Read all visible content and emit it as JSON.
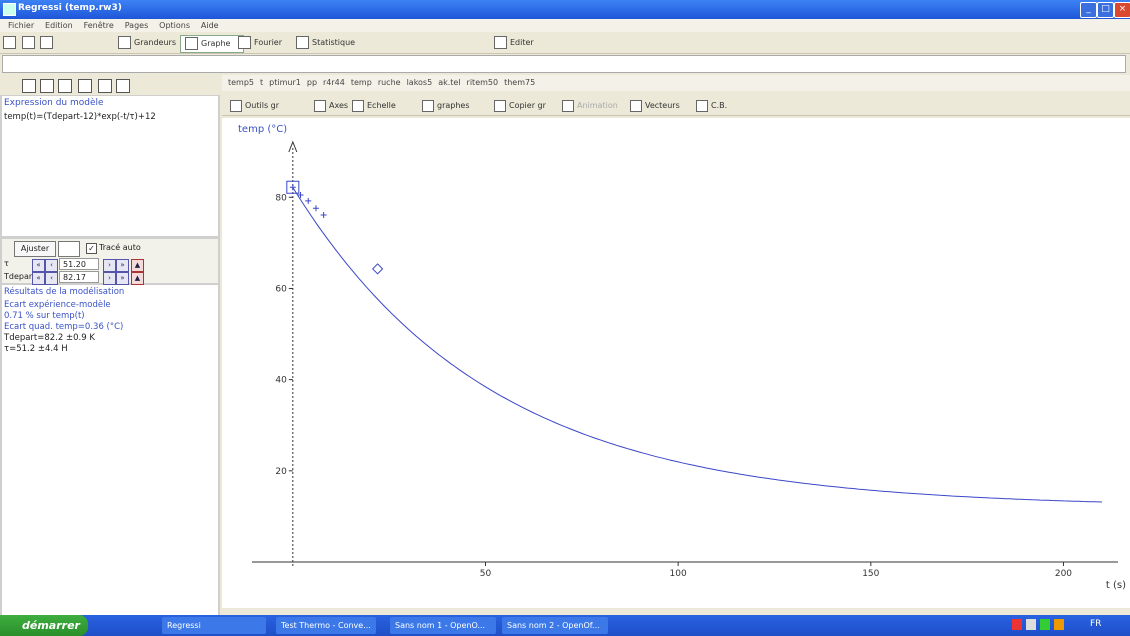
{
  "window": {
    "title": "Regressi (temp.rw3)"
  },
  "menu": [
    "Fichier",
    "Edition",
    "Fenêtre",
    "Pages",
    "Options",
    "Aide"
  ],
  "toolbar": {
    "grandeurs": "Grandeurs",
    "graphe": "Graphe",
    "fourier": "Fourier",
    "statistique": "Statistique",
    "editer": "Editer"
  },
  "left": {
    "model_header": "Expression du modèle",
    "model_expr": "temp(t)=(Tdepart-12)*exp(-t/τ)+12",
    "ajuster": "Ajuster",
    "trace_auto": "Tracé auto",
    "params": [
      {
        "name": "τ",
        "value": "51.20"
      },
      {
        "name": "Tdepart",
        "value": "82.17"
      }
    ],
    "results_header": "Résultats de la modélisation",
    "results": [
      {
        "text": "Ecart expérience-modèle",
        "blue": true
      },
      {
        "text": "0.71 % sur temp(t)",
        "blue": true
      },
      {
        "text": "Ecart quad. temp=0.36 (°C)",
        "blue": true
      },
      {
        "text": "Tdepart=82.2 ±0.9 K",
        "blue": false
      },
      {
        "text": "τ=51.2 ±4.4 H",
        "blue": false
      }
    ]
  },
  "var_tabs": [
    "temp5",
    "t",
    "ptimur1",
    "pp",
    "r4r44",
    "temp",
    "ruche",
    "lakos5",
    "ak.tel",
    "ritem50",
    "them75"
  ],
  "graph_tools": [
    {
      "label": "Outils gr",
      "disabled": false
    },
    {
      "label": "Axes",
      "disabled": false
    },
    {
      "label": "Echelle",
      "disabled": false
    },
    {
      "label": "graphes",
      "disabled": false
    },
    {
      "label": "Copier gr",
      "disabled": false
    },
    {
      "label": "Animation",
      "disabled": true
    },
    {
      "label": "Vecteurs",
      "disabled": false
    },
    {
      "label": "C.B.",
      "disabled": false
    }
  ],
  "chart_data": {
    "type": "line",
    "title": "",
    "xlabel": "t (s)",
    "ylabel": "temp (°C)",
    "xlim": [
      -8,
      210
    ],
    "ylim": [
      0,
      93
    ],
    "xticks": [
      50,
      100,
      150,
      200
    ],
    "yticks": [
      20,
      40,
      60,
      80
    ],
    "grid": false,
    "series": [
      {
        "name": "",
        "model": {
          "T0": 82.17,
          "tau": 51.2,
          "Tinf": 12
        },
        "x_range": [
          0,
          210
        ],
        "color": "#3a46c8"
      }
    ],
    "points": [
      {
        "x": 0,
        "y": 82.2
      },
      {
        "x": 2,
        "y": 80.5
      },
      {
        "x": 4,
        "y": 79.2
      },
      {
        "x": 6,
        "y": 77.6
      },
      {
        "x": 8,
        "y": 76.1
      },
      {
        "x": 22,
        "y": 64.3
      }
    ]
  },
  "taskbar": {
    "start": "démarrer",
    "tasks": [
      "Regressi",
      "Test Thermo - Conve...",
      "Sans nom 1 - OpenO...",
      "Sans nom 2 - OpenOf..."
    ],
    "clock": "FR"
  }
}
